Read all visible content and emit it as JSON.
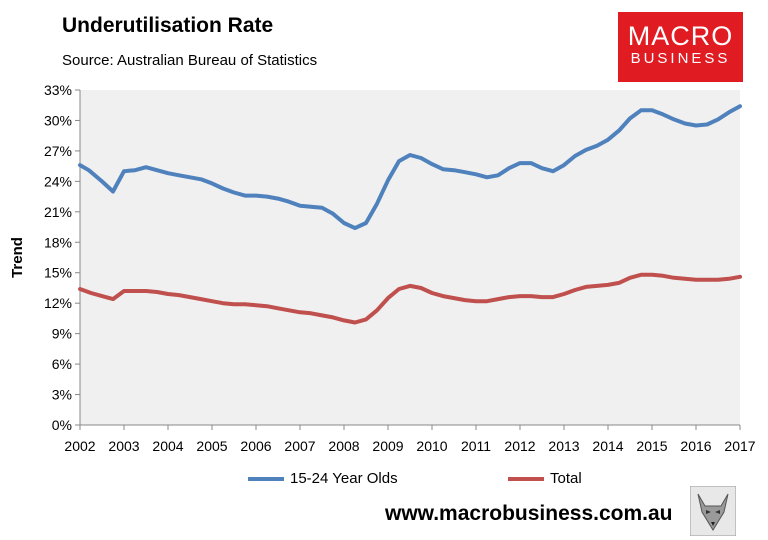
{
  "header": {
    "title": "Underutilisation Rate",
    "subtitle": "Source: Australian Bureau of Statistics"
  },
  "logo": {
    "line1": "MACRO",
    "line2": "BUSINESS"
  },
  "footer": {
    "url": "www.macrobusiness.com.au"
  },
  "colors": {
    "series1": "#4f81bd",
    "series2": "#c0504d",
    "plot_bg": "#f0f0f0",
    "logo_bg": "#e11b22"
  },
  "chart_data": {
    "type": "line",
    "title": "Underutilisation Rate",
    "xlabel": "",
    "ylabel": "Trend",
    "x_ticks": [
      "2002",
      "2003",
      "2004",
      "2005",
      "2006",
      "2007",
      "2008",
      "2009",
      "2010",
      "2011",
      "2012",
      "2013",
      "2014",
      "2015",
      "2016",
      "2017"
    ],
    "y_ticks": [
      "0%",
      "3%",
      "6%",
      "9%",
      "12%",
      "15%",
      "18%",
      "21%",
      "24%",
      "27%",
      "30%",
      "33%"
    ],
    "xlim": [
      2002,
      2017
    ],
    "ylim": [
      0,
      33
    ],
    "legend_position": "bottom",
    "series": [
      {
        "name": "15-24 Year Olds",
        "color": "#4f81bd",
        "x": [
          2002.0,
          2002.2,
          2002.5,
          2002.75,
          2003.0,
          2003.25,
          2003.5,
          2003.75,
          2004.0,
          2004.25,
          2004.5,
          2004.75,
          2005.0,
          2005.25,
          2005.5,
          2005.75,
          2006.0,
          2006.25,
          2006.5,
          2006.75,
          2007.0,
          2007.25,
          2007.5,
          2007.75,
          2008.0,
          2008.25,
          2008.5,
          2008.75,
          2009.0,
          2009.25,
          2009.5,
          2009.75,
          2010.0,
          2010.25,
          2010.5,
          2010.75,
          2011.0,
          2011.25,
          2011.5,
          2011.75,
          2012.0,
          2012.25,
          2012.5,
          2012.75,
          2013.0,
          2013.25,
          2013.5,
          2013.75,
          2014.0,
          2014.25,
          2014.5,
          2014.75,
          2015.0,
          2015.25,
          2015.5,
          2015.75,
          2016.0,
          2016.25,
          2016.5,
          2016.75,
          2017.0
        ],
        "values": [
          25.6,
          25.1,
          24.0,
          23.0,
          25.0,
          25.1,
          25.4,
          25.1,
          24.8,
          24.6,
          24.4,
          24.2,
          23.8,
          23.3,
          22.9,
          22.6,
          22.6,
          22.5,
          22.3,
          22.0,
          21.6,
          21.5,
          21.4,
          20.8,
          19.9,
          19.4,
          19.9,
          21.8,
          24.1,
          26.0,
          26.6,
          26.3,
          25.7,
          25.2,
          25.1,
          24.9,
          24.7,
          24.4,
          24.6,
          25.3,
          25.8,
          25.8,
          25.3,
          25.0,
          25.6,
          26.5,
          27.1,
          27.5,
          28.1,
          29.0,
          30.2,
          31.0,
          31.0,
          30.6,
          30.1,
          29.7,
          29.5,
          29.6,
          30.1,
          30.8,
          31.4
        ]
      },
      {
        "name": "Total",
        "color": "#c0504d",
        "x": [
          2002.0,
          2002.25,
          2002.5,
          2002.75,
          2003.0,
          2003.25,
          2003.5,
          2003.75,
          2004.0,
          2004.25,
          2004.5,
          2004.75,
          2005.0,
          2005.25,
          2005.5,
          2005.75,
          2006.0,
          2006.25,
          2006.5,
          2006.75,
          2007.0,
          2007.25,
          2007.5,
          2007.75,
          2008.0,
          2008.25,
          2008.5,
          2008.75,
          2009.0,
          2009.25,
          2009.5,
          2009.75,
          2010.0,
          2010.25,
          2010.5,
          2010.75,
          2011.0,
          2011.25,
          2011.5,
          2011.75,
          2012.0,
          2012.25,
          2012.5,
          2012.75,
          2013.0,
          2013.25,
          2013.5,
          2013.75,
          2014.0,
          2014.25,
          2014.5,
          2014.75,
          2015.0,
          2015.25,
          2015.5,
          2015.75,
          2016.0,
          2016.25,
          2016.5,
          2016.75,
          2017.0
        ],
        "values": [
          13.4,
          13.0,
          12.7,
          12.4,
          13.2,
          13.2,
          13.2,
          13.1,
          12.9,
          12.8,
          12.6,
          12.4,
          12.2,
          12.0,
          11.9,
          11.9,
          11.8,
          11.7,
          11.5,
          11.3,
          11.1,
          11.0,
          10.8,
          10.6,
          10.3,
          10.1,
          10.4,
          11.3,
          12.5,
          13.4,
          13.7,
          13.5,
          13.0,
          12.7,
          12.5,
          12.3,
          12.2,
          12.2,
          12.4,
          12.6,
          12.7,
          12.7,
          12.6,
          12.6,
          12.9,
          13.3,
          13.6,
          13.7,
          13.8,
          14.0,
          14.5,
          14.8,
          14.8,
          14.7,
          14.5,
          14.4,
          14.3,
          14.3,
          14.3,
          14.4,
          14.6
        ]
      }
    ]
  }
}
